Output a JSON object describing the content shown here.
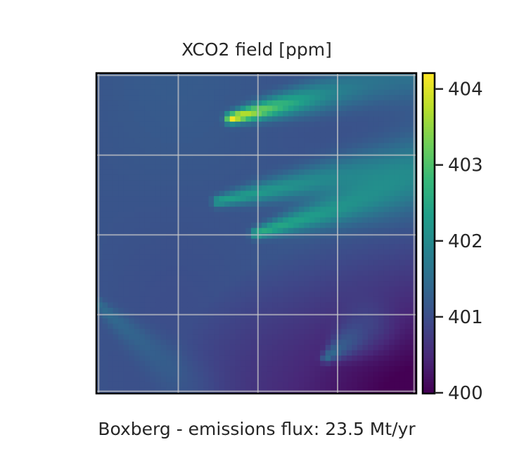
{
  "chart_data": {
    "type": "heatmap",
    "title": "XCO2 field [ppm]",
    "xlabel": "Boxberg - emissions flux: 23.5 Mt/yr",
    "ylabel": "",
    "grid": true,
    "colormap": "viridis",
    "colorbar": {
      "range": [
        400,
        404.2
      ],
      "ticks": [
        400,
        401,
        402,
        403,
        404
      ],
      "tick_labels": [
        "400",
        "401",
        "402",
        "403",
        "404"
      ]
    },
    "field_summary": {
      "background_ppm": 401.1,
      "low_region": {
        "location": "bottom-right",
        "min_ppm": 400.0
      },
      "plumes": [
        {
          "name": "",
          "start": [
            0.42,
            0.14
          ],
          "end": [
            0.97,
            0.0
          ],
          "peak_ppm": 404.2
        },
        {
          "name": "",
          "start": [
            0.38,
            0.4
          ],
          "end": [
            1.0,
            0.27
          ],
          "peak_ppm": 402.4
        },
        {
          "name": "",
          "start": [
            0.5,
            0.5
          ],
          "end": [
            1.0,
            0.35
          ],
          "peak_ppm": 402.6
        },
        {
          "name": "",
          "start": [
            0.72,
            0.89
          ],
          "end": [
            0.85,
            0.8
          ],
          "peak_ppm": 402.2
        },
        {
          "name": "",
          "start": [
            0.0,
            0.72
          ],
          "end": [
            0.3,
            0.98
          ],
          "peak_ppm": 401.5
        }
      ]
    },
    "colors": {
      "cmap_stops": [
        "#440154",
        "#482878",
        "#3e4989",
        "#31688e",
        "#26828e",
        "#1f9e89",
        "#35b779",
        "#6ece58",
        "#b5de2b",
        "#fde725"
      ],
      "grid": "#c8c8c8",
      "frame": "#000000"
    }
  }
}
